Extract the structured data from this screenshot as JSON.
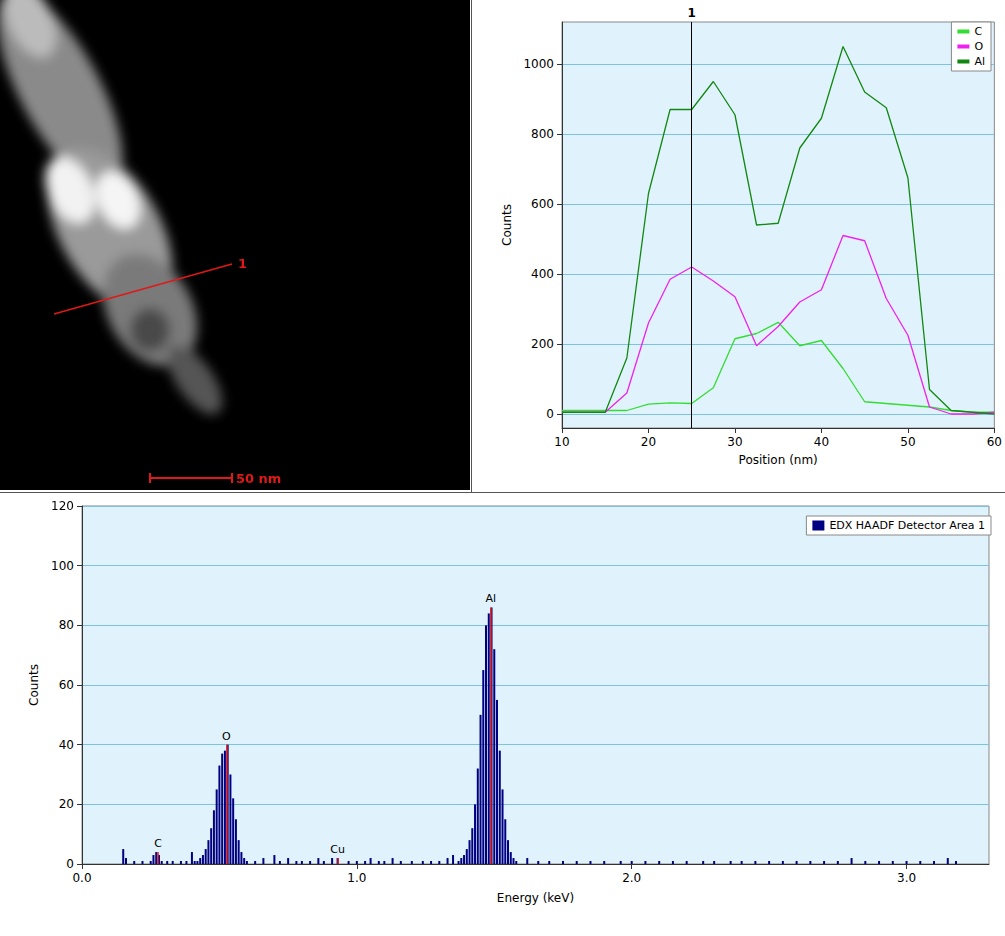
{
  "image_panel": {
    "line_label": "1",
    "scale_bar": "50 nm"
  },
  "chart_data": [
    {
      "type": "line",
      "x_label": "Position (nm)",
      "y_label": "Counts",
      "x": [
        10,
        12.5,
        15,
        17.5,
        20,
        22.5,
        25,
        27.5,
        30,
        32.5,
        35,
        37.5,
        40,
        42.5,
        45,
        47.5,
        50,
        52.5,
        55,
        57.5,
        60
      ],
      "series": [
        {
          "name": "C",
          "color": "#33dd33",
          "values": [
            10,
            10,
            10,
            10,
            28,
            32,
            30,
            75,
            215,
            230,
            262,
            195,
            210,
            130,
            35,
            30,
            25,
            20,
            10,
            5,
            5
          ]
        },
        {
          "name": "O",
          "color": "#ee22ee",
          "values": [
            5,
            5,
            5,
            60,
            260,
            385,
            420,
            380,
            335,
            195,
            250,
            320,
            355,
            510,
            495,
            330,
            225,
            20,
            0,
            0,
            5
          ]
        },
        {
          "name": "Al",
          "color": "#118811",
          "values": [
            5,
            5,
            5,
            160,
            630,
            870,
            870,
            950,
            855,
            540,
            545,
            760,
            845,
            1050,
            920,
            875,
            675,
            70,
            10,
            5,
            0
          ]
        }
      ],
      "xlim": [
        10,
        60
      ],
      "xticks": [
        10,
        20,
        30,
        40,
        50,
        60
      ],
      "ylim": [
        -40,
        1120
      ],
      "yticks": [
        0,
        200,
        400,
        600,
        800,
        1000
      ],
      "grid": true,
      "legend": "upper right",
      "annotations": [
        {
          "x": 25,
          "label": "1"
        }
      ]
    },
    {
      "type": "bar",
      "x_label": "Energy (keV)",
      "y_label": "Counts",
      "x": [
        0.15,
        0.16,
        0.19,
        0.22,
        0.25,
        0.26,
        0.27,
        0.28,
        0.29,
        0.31,
        0.33,
        0.36,
        0.38,
        0.4,
        0.41,
        0.42,
        0.43,
        0.44,
        0.45,
        0.46,
        0.47,
        0.48,
        0.49,
        0.5,
        0.51,
        0.52,
        0.53,
        0.54,
        0.55,
        0.56,
        0.57,
        0.58,
        0.59,
        0.6,
        0.63,
        0.66,
        0.7,
        0.72,
        0.75,
        0.78,
        0.8,
        0.83,
        0.86,
        0.88,
        0.91,
        0.93,
        0.97,
        1.0,
        1.03,
        1.05,
        1.08,
        1.1,
        1.13,
        1.16,
        1.2,
        1.24,
        1.27,
        1.3,
        1.33,
        1.35,
        1.37,
        1.38,
        1.39,
        1.4,
        1.41,
        1.42,
        1.43,
        1.44,
        1.45,
        1.46,
        1.47,
        1.48,
        1.49,
        1.5,
        1.51,
        1.52,
        1.53,
        1.54,
        1.55,
        1.56,
        1.57,
        1.58,
        1.62,
        1.66,
        1.7,
        1.75,
        1.8,
        1.85,
        1.9,
        1.96,
        2.0,
        2.05,
        2.1,
        2.15,
        2.2,
        2.26,
        2.3,
        2.36,
        2.4,
        2.45,
        2.5,
        2.55,
        2.6,
        2.65,
        2.7,
        2.75,
        2.8,
        2.85,
        2.9,
        2.95,
        3.0,
        3.05,
        3.1,
        3.15,
        3.18
      ],
      "series": [
        {
          "name": "EDX HAADF Detector Area 1",
          "color": "#000080",
          "values": [
            5,
            2,
            1,
            1,
            1,
            3,
            4,
            3,
            1,
            1,
            1,
            1,
            1,
            4,
            1,
            1,
            2,
            3,
            5,
            8,
            12,
            18,
            25,
            33,
            37,
            38,
            40,
            30,
            22,
            15,
            8,
            4,
            2,
            1,
            1,
            2,
            3,
            1,
            2,
            1,
            1,
            1,
            2,
            1,
            2,
            2,
            1,
            1,
            1,
            2,
            1,
            1,
            2,
            1,
            1,
            1,
            1,
            1,
            2,
            3,
            1,
            2,
            3,
            5,
            8,
            12,
            20,
            32,
            50,
            65,
            80,
            84,
            86,
            72,
            55,
            38,
            25,
            15,
            8,
            4,
            2,
            1,
            2,
            1,
            1,
            1,
            1,
            1,
            1,
            1,
            1,
            1,
            1,
            1,
            1,
            1,
            1,
            1,
            1,
            1,
            1,
            1,
            1,
            1,
            1,
            1,
            2,
            1,
            1,
            1,
            1,
            1,
            1,
            2,
            1
          ]
        }
      ],
      "xlim": [
        0,
        3.3
      ],
      "xticks": [
        {
          "value": 0,
          "label": "0.0"
        },
        {
          "value": 1,
          "label": "1.0"
        },
        {
          "value": 2,
          "label": "2.0"
        },
        {
          "value": 3,
          "label": "3.0"
        }
      ],
      "ylim": [
        0,
        120
      ],
      "yticks": [
        0,
        20,
        40,
        60,
        80,
        100,
        120
      ],
      "grid": true,
      "legend": "upper right",
      "peaks": [
        {
          "label": "C",
          "x": 0.277,
          "height": 4
        },
        {
          "label": "O",
          "x": 0.525,
          "height": 40
        },
        {
          "label": "Cu",
          "x": 0.93,
          "height": 2
        },
        {
          "label": "Al",
          "x": 1.487,
          "height": 86
        }
      ]
    }
  ]
}
